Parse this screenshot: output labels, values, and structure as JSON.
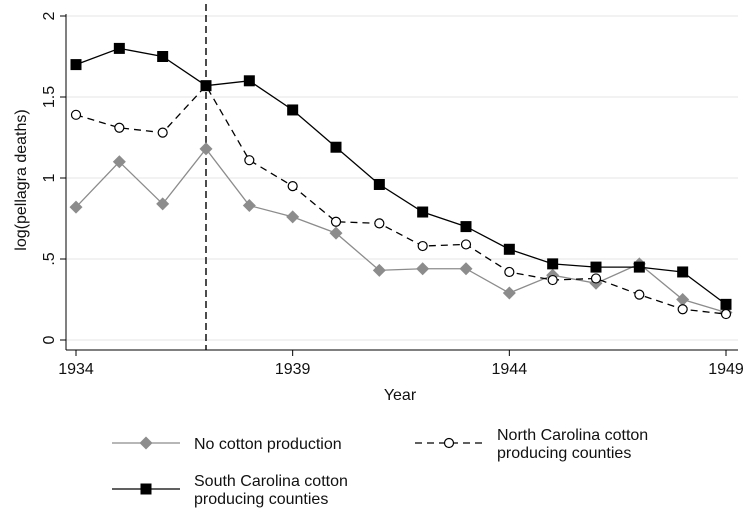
{
  "chart_data": {
    "type": "line",
    "title": "",
    "xlabel": "Year",
    "ylabel": "log(pellagra deaths)",
    "xlim": [
      1934,
      1949
    ],
    "ylim": [
      0,
      2
    ],
    "x_ticks": [
      "1934",
      "1939",
      "1944",
      "1949"
    ],
    "y_ticks": [
      "0",
      ".5",
      "1",
      "1.5",
      "2"
    ],
    "x": [
      1934,
      1935,
      1936,
      1937,
      1938,
      1939,
      1940,
      1941,
      1942,
      1943,
      1944,
      1945,
      1946,
      1947,
      1948,
      1949
    ],
    "vertical_reference_line": {
      "x": 1937,
      "style": "dashed"
    },
    "grid": "horizontal",
    "legend_position": "bottom",
    "series": [
      {
        "name": "No cotton production",
        "marker": "diamond",
        "line_style": "solid",
        "color": "#8c8c8c",
        "values": [
          0.82,
          1.1,
          0.84,
          1.18,
          0.83,
          0.76,
          0.66,
          0.43,
          0.44,
          0.44,
          0.29,
          0.4,
          0.35,
          0.47,
          0.25,
          0.17
        ]
      },
      {
        "name": "North Carolina cotton producing counties",
        "marker": "hollow-circle",
        "line_style": "dashed",
        "color": "#000000",
        "values": [
          1.39,
          1.31,
          1.28,
          1.57,
          1.11,
          0.95,
          0.73,
          0.72,
          0.58,
          0.59,
          0.42,
          0.37,
          0.38,
          0.28,
          0.19,
          0.16
        ]
      },
      {
        "name": "South Carolina cotton producing counties",
        "marker": "square",
        "line_style": "solid",
        "color": "#000000",
        "values": [
          1.7,
          1.8,
          1.75,
          1.57,
          1.6,
          1.42,
          1.19,
          0.96,
          0.79,
          0.7,
          0.56,
          0.47,
          0.45,
          0.45,
          0.42,
          0.22
        ]
      }
    ],
    "legend": [
      {
        "series": 0,
        "lines": [
          "No cotton production"
        ]
      },
      {
        "series": 1,
        "lines": [
          "North Carolina cotton",
          "producing counties"
        ]
      },
      {
        "series": 2,
        "lines": [
          "South Carolina cotton",
          "producing counties"
        ]
      }
    ]
  }
}
